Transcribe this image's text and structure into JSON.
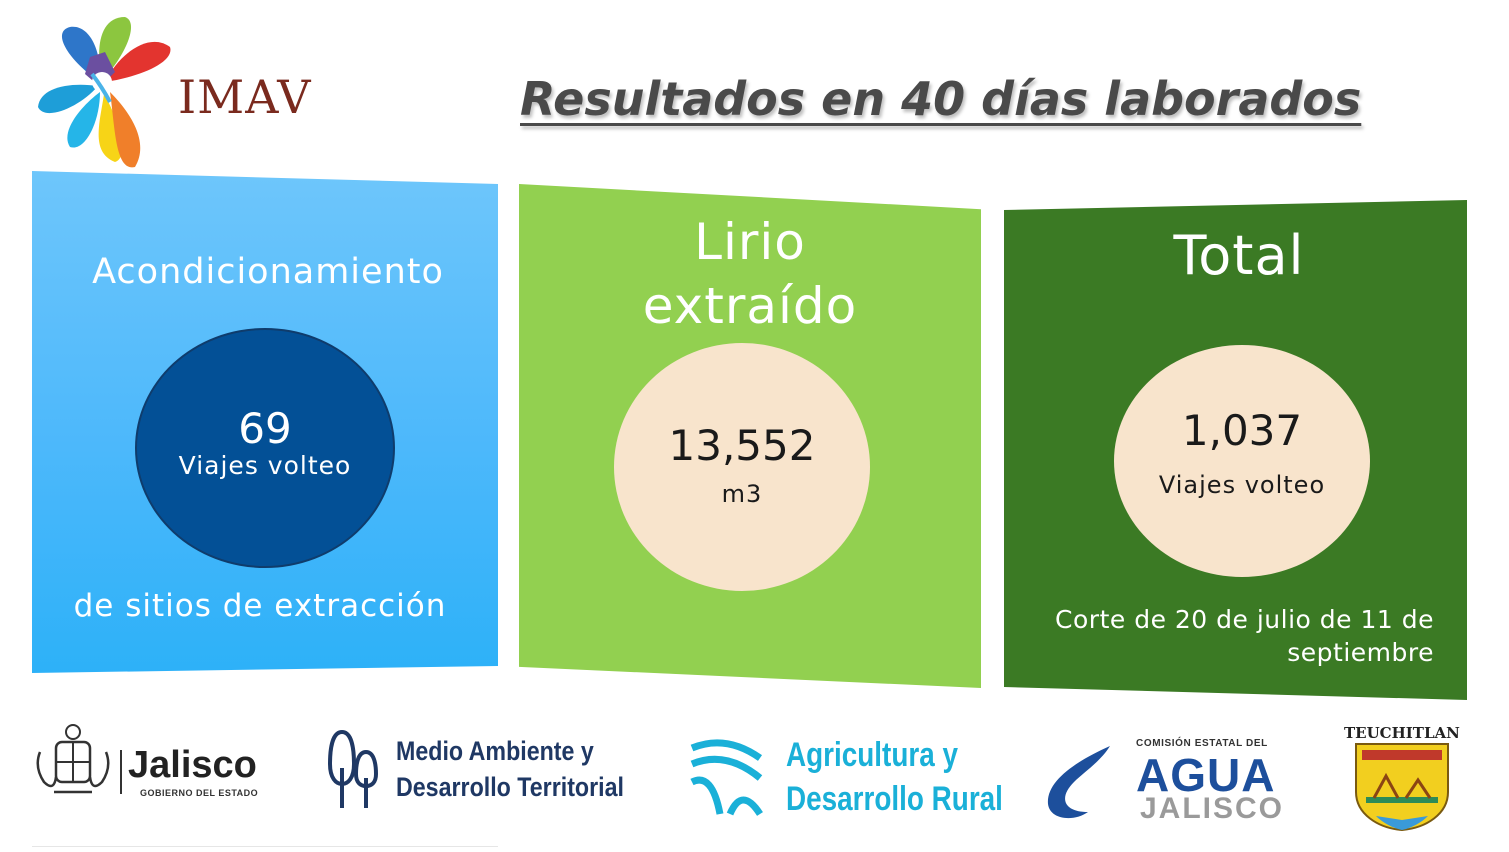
{
  "header": {
    "logo_text": "IMAV",
    "title": "Resultados en 40 días laborados"
  },
  "panels": [
    {
      "title": "Acondicionamiento",
      "value": "69",
      "unit": "Viajes volteo",
      "footer": "de sitios de extracción",
      "color": "#4cb8fb",
      "circle_color": "#035096"
    },
    {
      "title_line1": "Lirio",
      "title_line2": "extraído",
      "value": "13,552",
      "unit": "m3",
      "color": "#92d050",
      "circle_color": "#f8e4cc"
    },
    {
      "title": "Total",
      "value": "1,037",
      "unit": "Viajes volteo",
      "footer_line1": "Corte de 20 de julio de 11 de",
      "footer_line2": "septiembre",
      "color": "#3b7a24",
      "circle_color": "#f8e4cc"
    }
  ],
  "logos": {
    "jalisco": {
      "name": "Jalisco",
      "sub": "GOBIERNO DEL ESTADO"
    },
    "medio_ambiente": {
      "line1": "Medio Ambiente y",
      "line2": "Desarrollo Territorial"
    },
    "agricultura": {
      "line1": "Agricultura y",
      "line2": "Desarrollo Rural"
    },
    "agua": {
      "top": "COMISIÓN ESTATAL DEL",
      "main": "AGUA",
      "sub": "JALISCO"
    },
    "teuchitlan": {
      "name": "TEUCHITLAN"
    }
  }
}
